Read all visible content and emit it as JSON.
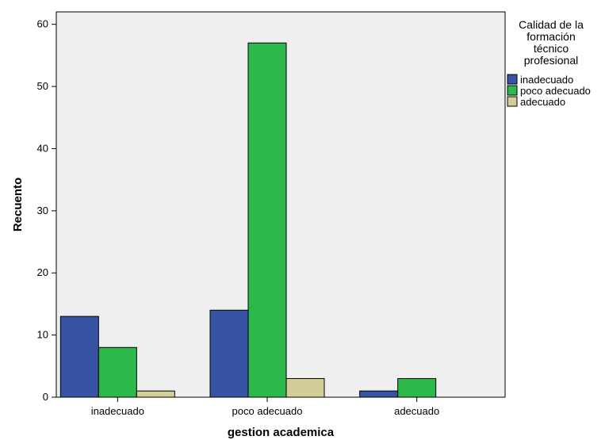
{
  "chart_data": {
    "type": "bar",
    "categories": [
      "inadecuado",
      "poco adecuado",
      "adecuado"
    ],
    "series": [
      {
        "name": "inadecuado",
        "values": [
          13,
          14,
          1
        ],
        "color": "#3953A4"
      },
      {
        "name": "poco adecuado",
        "values": [
          8,
          57,
          3
        ],
        "color": "#2DB84B"
      },
      {
        "name": "adecuado",
        "values": [
          1,
          3,
          0
        ],
        "color": "#D3CE97"
      }
    ],
    "xlabel": "gestion academica",
    "ylabel": "Recuento",
    "ylim": [
      0,
      62
    ],
    "yticks": [
      0,
      10,
      20,
      30,
      40,
      50,
      60
    ],
    "legend": {
      "title_lines": [
        "Calidad de la",
        "formación",
        "técnico",
        "profesional"
      ],
      "position": "right"
    },
    "plot_background": "#EFEFEF",
    "grid": false
  }
}
